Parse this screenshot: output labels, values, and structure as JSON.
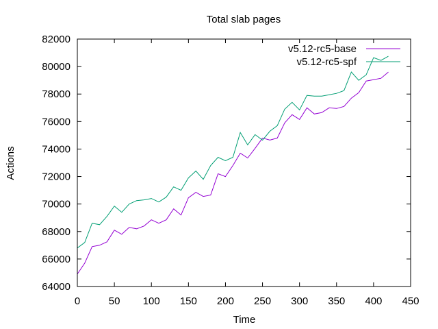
{
  "chart_data": {
    "type": "line",
    "title": "Total slab pages",
    "xlabel": "Time",
    "ylabel": "Actions",
    "xlim": [
      0,
      450
    ],
    "ylim": [
      64000,
      82000
    ],
    "xticks": [
      0,
      50,
      100,
      150,
      200,
      250,
      300,
      350,
      400,
      450
    ],
    "yticks": [
      64000,
      66000,
      68000,
      70000,
      72000,
      74000,
      76000,
      78000,
      80000,
      82000
    ],
    "grid": false,
    "legend_position": "top-right",
    "series": [
      {
        "name": "v5.12-rc5-base",
        "color": "#9400d3",
        "x": [
          0,
          10,
          20,
          30,
          40,
          50,
          60,
          70,
          80,
          90,
          100,
          110,
          120,
          130,
          140,
          150,
          160,
          170,
          180,
          190,
          200,
          210,
          220,
          230,
          240,
          250,
          260,
          270,
          280,
          290,
          300,
          310,
          320,
          330,
          340,
          350,
          360,
          370,
          380,
          390,
          400,
          410,
          420
        ],
        "values": [
          64900,
          65700,
          66900,
          67000,
          67250,
          68100,
          67800,
          68300,
          68200,
          68400,
          68850,
          68600,
          68850,
          69650,
          69200,
          70450,
          70850,
          70550,
          70650,
          72200,
          72000,
          72800,
          73700,
          73350,
          74050,
          74800,
          74650,
          74800,
          75900,
          76500,
          76150,
          77000,
          76550,
          76650,
          77000,
          76950,
          77100,
          77700,
          78100,
          78950,
          79050,
          79150,
          79600
        ]
      },
      {
        "name": "v5.12-rc5-spf",
        "color": "#009e73",
        "x": [
          0,
          10,
          20,
          30,
          40,
          50,
          60,
          70,
          80,
          90,
          100,
          110,
          120,
          130,
          140,
          150,
          160,
          170,
          180,
          190,
          200,
          210,
          220,
          230,
          240,
          250,
          260,
          270,
          280,
          290,
          300,
          310,
          320,
          330,
          340,
          350,
          360,
          370,
          380,
          390,
          400,
          410,
          420
        ],
        "values": [
          66800,
          67200,
          68600,
          68500,
          69100,
          69850,
          69400,
          70000,
          70250,
          70300,
          70400,
          70150,
          70500,
          71250,
          71000,
          71900,
          72400,
          71800,
          72800,
          73400,
          73150,
          73400,
          75200,
          74300,
          75050,
          74650,
          75300,
          75700,
          76900,
          77400,
          76850,
          77900,
          77850,
          77850,
          77950,
          78050,
          78250,
          79600,
          79000,
          79400,
          80650,
          80450,
          80750
        ]
      }
    ]
  }
}
